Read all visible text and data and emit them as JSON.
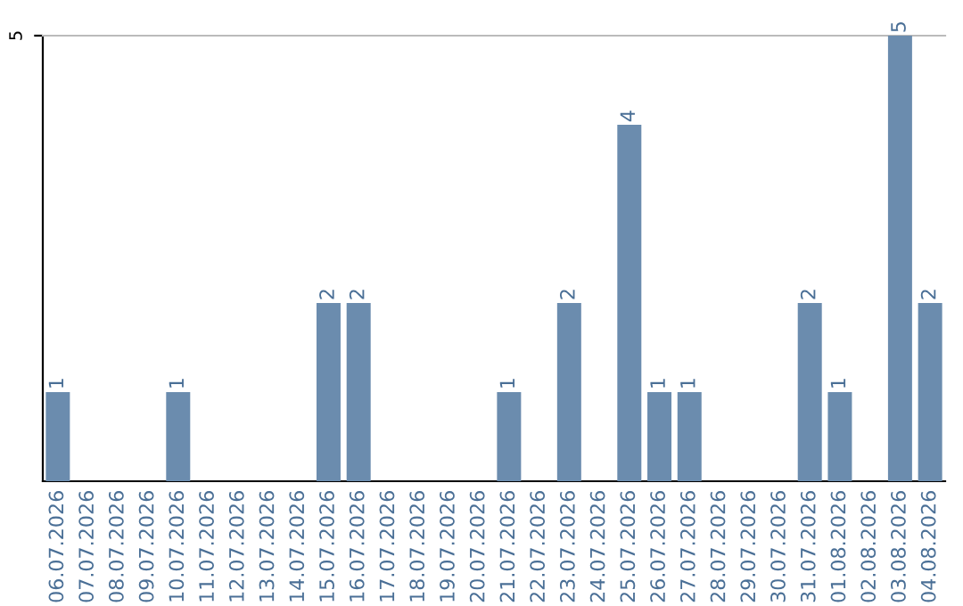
{
  "chart_data": {
    "type": "bar",
    "categories": [
      "06.07.2026",
      "07.07.2026",
      "08.07.2026",
      "09.07.2026",
      "10.07.2026",
      "11.07.2026",
      "12.07.2026",
      "13.07.2026",
      "14.07.2026",
      "15.07.2026",
      "16.07.2026",
      "17.07.2026",
      "18.07.2026",
      "19.07.2026",
      "20.07.2026",
      "21.07.2026",
      "22.07.2026",
      "23.07.2026",
      "24.07.2026",
      "25.07.2026",
      "26.07.2026",
      "27.07.2026",
      "28.07.2026",
      "29.07.2026",
      "30.07.2026",
      "31.07.2026",
      "01.08.2026",
      "02.08.2026",
      "03.08.2026",
      "04.08.2026"
    ],
    "values": [
      1,
      0,
      0,
      0,
      1,
      0,
      0,
      0,
      0,
      2,
      2,
      0,
      0,
      0,
      0,
      1,
      0,
      2,
      0,
      4,
      1,
      1,
      0,
      0,
      0,
      2,
      1,
      0,
      5,
      2
    ],
    "value_labels": [
      "1",
      null,
      null,
      null,
      "1",
      null,
      null,
      null,
      null,
      "2",
      "2",
      null,
      null,
      null,
      null,
      "1",
      null,
      "2",
      null,
      "4",
      "1",
      "1",
      null,
      null,
      null,
      "2",
      "1",
      null,
      "5",
      "2"
    ],
    "color": "#6b8cae",
    "ylim": [
      0,
      5
    ],
    "yticks": [
      5
    ]
  }
}
